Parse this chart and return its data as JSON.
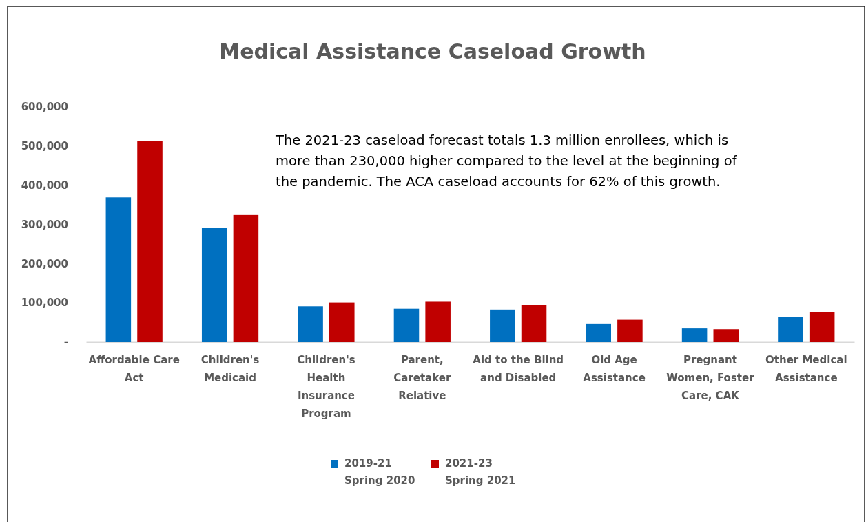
{
  "chart_data": {
    "type": "bar",
    "title": "Medical Assistance Caseload Growth",
    "categories": [
      "Affordable Care Act",
      "Children's Medicaid",
      "Children's Health Insurance Program",
      "Parent, Caretaker Relative",
      "Aid to the Blind and Disabled",
      "Old Age Assistance",
      "Pregnant Women, Foster Care, CAK",
      "Other Medical Assistance"
    ],
    "series": [
      {
        "name": "2019-21\nSpring 2020",
        "color": "#0070c0",
        "values": [
          369000,
          292000,
          91000,
          85000,
          83000,
          46000,
          35000,
          64000
        ]
      },
      {
        "name": "2021-23\nSpring 2021",
        "color": "#c00000",
        "values": [
          513000,
          324000,
          101000,
          103000,
          95000,
          57000,
          33000,
          77000
        ]
      }
    ],
    "ylim": [
      0,
      600000
    ],
    "yticks": [
      {
        "value": 0,
        "label": "-"
      },
      {
        "value": 100000,
        "label": "100,000"
      },
      {
        "value": 200000,
        "label": "200,000"
      },
      {
        "value": 300000,
        "label": "300,000"
      },
      {
        "value": 400000,
        "label": "400,000"
      },
      {
        "value": 500000,
        "label": "500,000"
      },
      {
        "value": 600000,
        "label": "600,000"
      }
    ],
    "grid": false,
    "legend": "bottom",
    "annotations": [
      "The 2021-23 caseload forecast totals 1.3 million enrollees, which is\nmore than 230,000 higher compared to the level at the beginning of\nthe pandemic. The ACA caseload accounts for 62% of this growth."
    ]
  }
}
